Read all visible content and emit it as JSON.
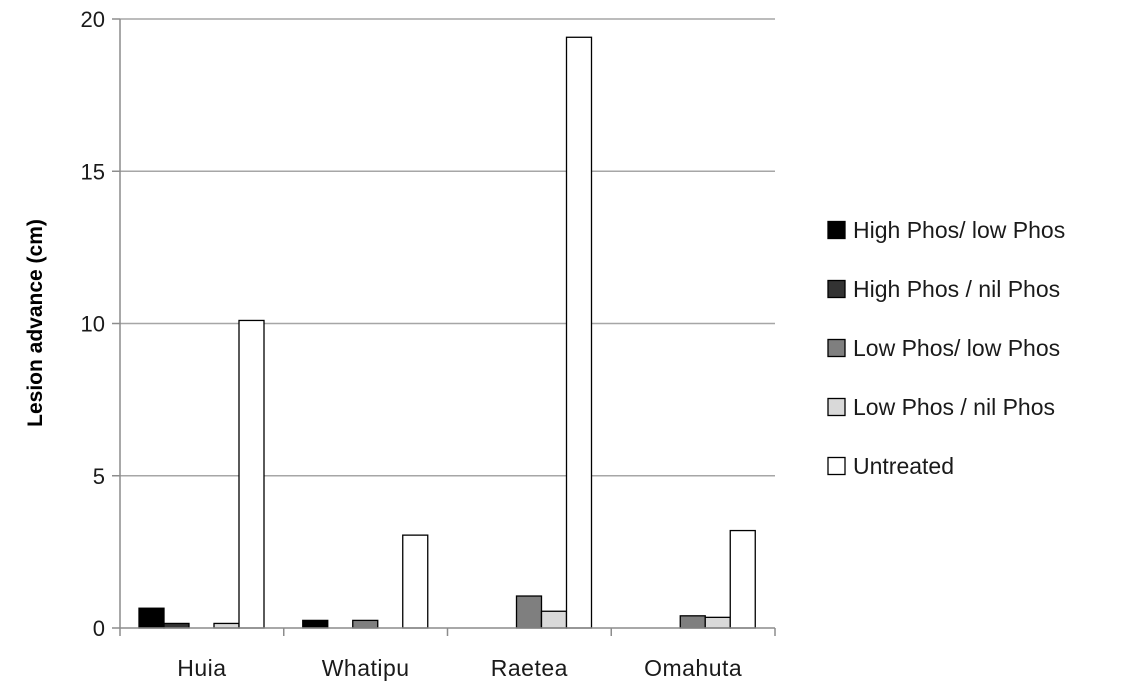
{
  "chart_data": {
    "type": "bar",
    "title": "",
    "xlabel": "",
    "ylabel": "Lesion advance (cm)",
    "ylim": [
      0,
      20
    ],
    "yticks": [
      0,
      5,
      10,
      15,
      20
    ],
    "grid": true,
    "legend_position": "right",
    "categories": [
      "Huia",
      "Whatipu",
      "Raetea",
      "Omahuta"
    ],
    "series": [
      {
        "name": "High Phos/ low Phos",
        "color": "#000000",
        "values": [
          0.65,
          0.25,
          0,
          0
        ]
      },
      {
        "name": "High Phos / nil Phos",
        "color": "#333333",
        "values": [
          0.15,
          0,
          0,
          0
        ]
      },
      {
        "name": "Low Phos/ low Phos",
        "color": "#7f7f7f",
        "values": [
          0,
          0.25,
          1.05,
          0.4
        ]
      },
      {
        "name": "Low Phos / nil Phos",
        "color": "#d9d9d9",
        "values": [
          0.15,
          0,
          0.55,
          0.35
        ]
      },
      {
        "name": "Untreated",
        "color": "#ffffff",
        "values": [
          10.1,
          3.05,
          19.4,
          3.2
        ]
      }
    ]
  }
}
